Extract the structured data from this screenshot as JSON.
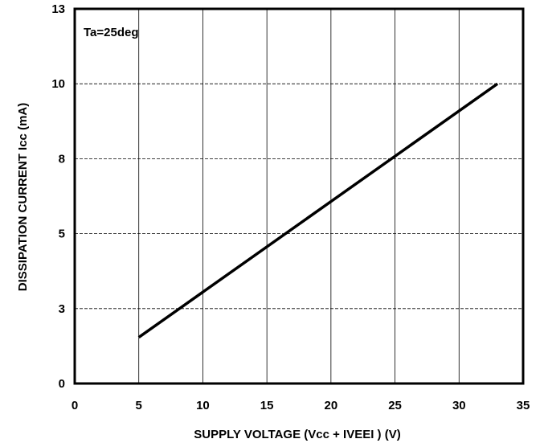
{
  "chart_data": {
    "type": "line",
    "title": "",
    "xlabel": "SUPPLY VOLTAGE (Vcc + IVEEI )  (V)",
    "ylabel": "DISSIPATION  CURRENT Icc  (mA)",
    "xlim": [
      0,
      35
    ],
    "ylim": [
      0,
      13
    ],
    "xticks": [
      0,
      5,
      10,
      15,
      20,
      25,
      30,
      35
    ],
    "yticks": [
      0,
      3,
      5,
      8,
      10,
      13
    ],
    "ytick_labels": [
      "0",
      "3",
      "5",
      "8",
      "10",
      "13"
    ],
    "grid": true,
    "annotation": "Ta=25deg",
    "series": [
      {
        "x": [
          5,
          33
        ],
        "y": [
          1.6,
          10.4
        ]
      }
    ],
    "colors": {
      "line": "#000000",
      "grid": "#000000",
      "background": "#ffffff"
    }
  }
}
